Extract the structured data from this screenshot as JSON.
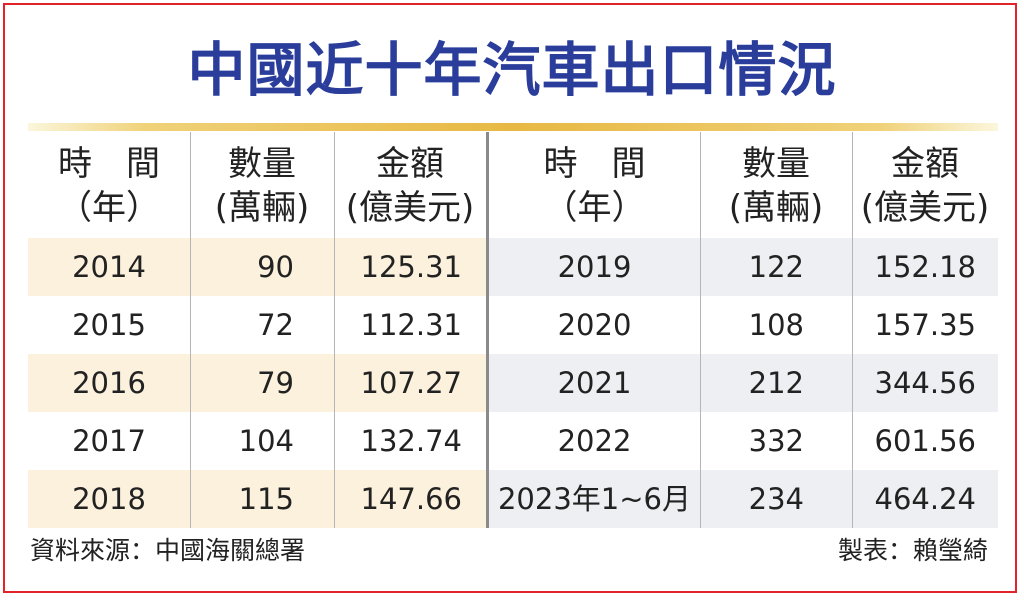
{
  "title": "中國近十年汽車出口情況",
  "chart_data": {
    "type": "table",
    "columns": [
      {
        "line1": "時　間",
        "line2": "（年）"
      },
      {
        "line1": "數量",
        "line2": "(萬輛)"
      },
      {
        "line1": "金額",
        "line2": "(億美元)"
      },
      {
        "line1": "時　間",
        "line2": "（年）"
      },
      {
        "line1": "數量",
        "line2": "(萬輛)"
      },
      {
        "line1": "金額",
        "line2": "(億美元)"
      }
    ],
    "rows": [
      {
        "year": "2014",
        "quantity": "90",
        "amount": "125.31"
      },
      {
        "year": "2015",
        "quantity": "72",
        "amount": "112.31"
      },
      {
        "year": "2016",
        "quantity": "79",
        "amount": "107.27"
      },
      {
        "year": "2017",
        "quantity": "104",
        "amount": "132.74"
      },
      {
        "year": "2018",
        "quantity": "115",
        "amount": "147.66"
      },
      {
        "year": "2019",
        "quantity": "122",
        "amount": "152.18"
      },
      {
        "year": "2020",
        "quantity": "108",
        "amount": "157.35"
      },
      {
        "year": "2021",
        "quantity": "212",
        "amount": "344.56"
      },
      {
        "year": "2022",
        "quantity": "332",
        "amount": "601.56"
      },
      {
        "year": "2023年1~6月",
        "quantity": "234",
        "amount": "464.24"
      }
    ]
  },
  "footer": {
    "source": "資料來源：中國海關總署",
    "credit": "製表：賴瑩綺"
  },
  "colors": {
    "frame": "#e2232a",
    "title": "#2a3d9a",
    "gold": "#e7b843",
    "stripe_left": "#fbf1dc",
    "stripe_right": "#eeeff2"
  }
}
